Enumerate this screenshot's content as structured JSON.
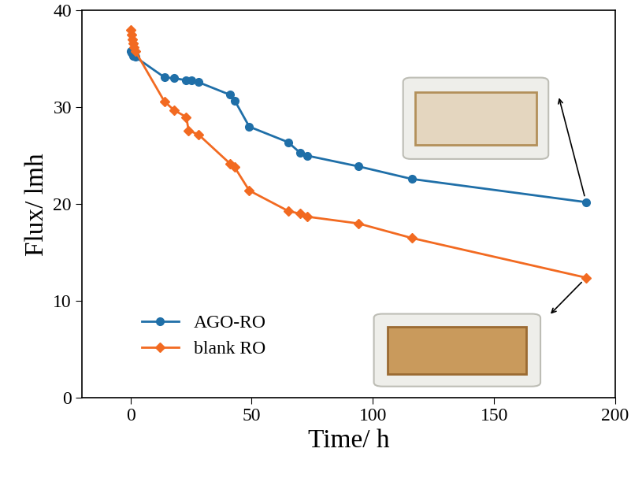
{
  "chart_data": {
    "type": "line",
    "x_label": "Time/ h",
    "y_label": "Flux/ lmh",
    "xlim": [
      -20,
      200
    ],
    "xticks": [
      0,
      50,
      100,
      150,
      200
    ],
    "ylim": [
      0,
      40
    ],
    "yticks": [
      0,
      10,
      20,
      30,
      40
    ],
    "legend": "lower left",
    "series": [
      {
        "name": "AGO-RO",
        "color": "#1f6fa8",
        "marker": "circle",
        "line_style": "solid",
        "x": [
          0,
          0.5,
          1,
          2,
          14,
          18,
          23,
          25,
          28,
          41,
          43,
          49,
          65,
          70,
          73,
          94,
          116,
          188
        ],
        "values": [
          35.8,
          35.6,
          35.3,
          35.2,
          33.1,
          33.0,
          32.8,
          32.8,
          32.6,
          31.3,
          30.7,
          28.0,
          26.4,
          25.3,
          25.0,
          23.9,
          22.6,
          20.2
        ]
      },
      {
        "name": "blank RO",
        "color": "#f26a21",
        "marker": "diamond",
        "line_style": "solid",
        "x": [
          0,
          0.3,
          0.6,
          1,
          1.5,
          2,
          14,
          18,
          23,
          24,
          28,
          41,
          43,
          49,
          65,
          70,
          73,
          94,
          116,
          188
        ],
        "values": [
          38.0,
          37.5,
          37.0,
          36.6,
          36.2,
          35.8,
          30.6,
          29.7,
          29.0,
          27.6,
          27.2,
          24.2,
          23.8,
          21.4,
          19.3,
          19.0,
          18.7,
          18.0,
          16.5,
          12.4
        ]
      }
    ]
  }
}
